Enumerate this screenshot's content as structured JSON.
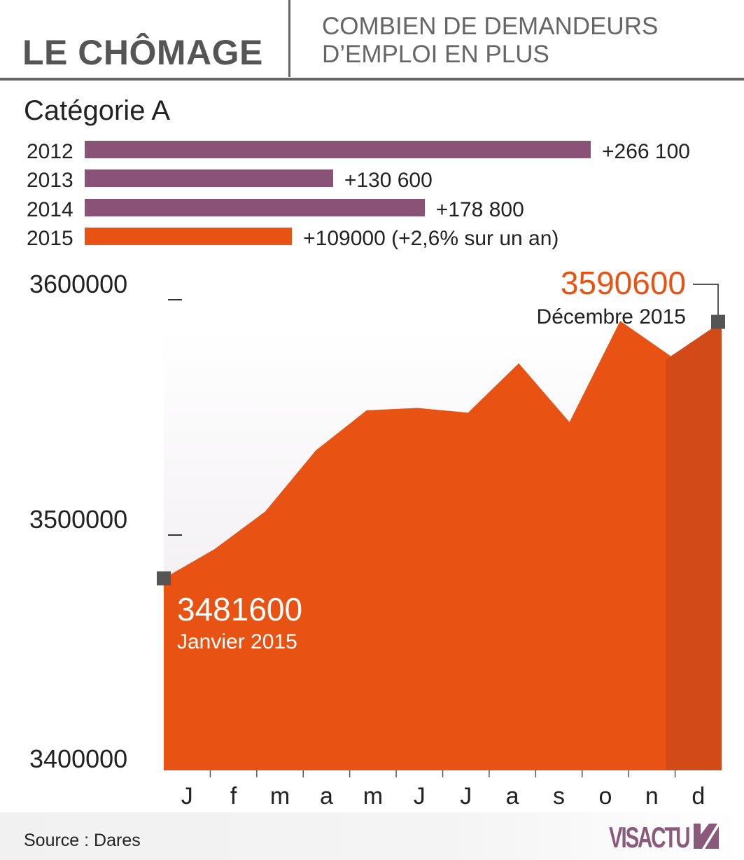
{
  "header": {
    "title": "LE CHÔMAGE",
    "subtitle_line1": "COMBIEN DE DEMANDEURS",
    "subtitle_line2": "D’EMPLOI EN PLUS"
  },
  "category_label": "Catégorie A",
  "annual_bars": [
    {
      "year": "2012",
      "value": 266100,
      "label": "+266 100",
      "color": "#8a5276"
    },
    {
      "year": "2013",
      "value": 130600,
      "label": "+130 600",
      "color": "#8a5276"
    },
    {
      "year": "2014",
      "value": 178800,
      "label": "+178 800",
      "color": "#8a5276"
    },
    {
      "year": "2015",
      "value": 109000,
      "label": "+109000 (+2,6% sur un an)",
      "color": "#e85314"
    }
  ],
  "chart_data": {
    "type": "area",
    "x": [
      "J",
      "f",
      "m",
      "a",
      "m",
      "J",
      "J",
      "a",
      "s",
      "o",
      "n",
      "d"
    ],
    "values": [
      3481600,
      3494000,
      3510000,
      3536000,
      3553000,
      3554000,
      3552000,
      3573000,
      3548000,
      3591000,
      3576000,
      3590600
    ],
    "ylim": [
      3400000,
      3600000
    ],
    "yticks": [
      {
        "value": 3400000,
        "label": "3400000"
      },
      {
        "value": 3500000,
        "label": "3500000"
      },
      {
        "value": 3600000,
        "label": "3600000"
      }
    ],
    "annotations": {
      "start": {
        "value": "3481600",
        "label": "Janvier 2015"
      },
      "end": {
        "value": "3590600",
        "label": "Décembre 2015"
      }
    },
    "colors": {
      "area": "#e85314",
      "area_highlight": "#d34a19",
      "marker": "#555555",
      "end_value": "#e85314"
    }
  },
  "footer": {
    "source": "Source : Dares",
    "logo": "VISACTU"
  }
}
